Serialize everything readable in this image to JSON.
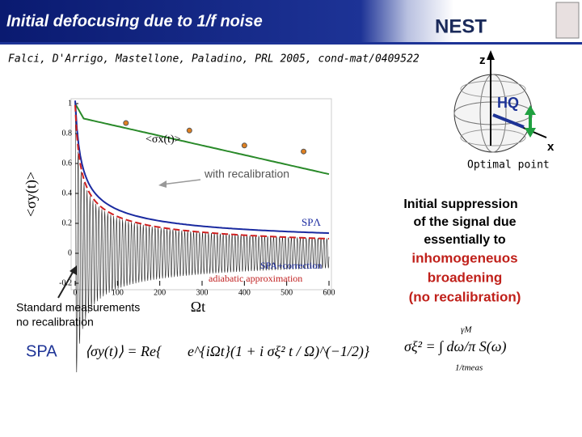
{
  "header": {
    "title": "Initial defocusing due to 1/f noise",
    "logo": "NEST"
  },
  "citation": "Falci, D'Arrigo, Mastellone, Paladino, PRL 2005, cond-mat/0409522",
  "plot": {
    "y_label": "<σy(t)>",
    "x_label": "Ωt",
    "xticks": [
      "0",
      "100",
      "200",
      "300",
      "400",
      "500",
      "600"
    ],
    "yticks": [
      "1",
      "0.8",
      "0.6",
      "0.4",
      "0.2",
      "0",
      "-0.2"
    ],
    "curve_labels": [
      "<σx(t)>",
      "SPΛ",
      "SPA+correction",
      "adiabatic approximation"
    ],
    "annotation_recal": "with recalibration",
    "annotation_norecal": [
      "Standard measurements",
      "no recalibration"
    ]
  },
  "formula_label": "SPA",
  "formula_lhs": "⟨σy(t)⟩ = Re{",
  "formula_rhs": "e^{iΩt}(1 + i σξ² t / Ω)^(−1/2)}",
  "sigma_formula": "σξ² = ∫ dω/π S(ω)",
  "sigma_limits": [
    "γM",
    "1/tmeas"
  ],
  "bloch": {
    "z": "z",
    "x": "x",
    "h": "HQ",
    "caption": "Optimal point"
  },
  "explanation": {
    "black": [
      "Initial suppression",
      "of the signal due",
      "essentially to"
    ],
    "red": [
      "inhomogeneuos",
      "broadening",
      "(no recalibration)"
    ]
  }
}
